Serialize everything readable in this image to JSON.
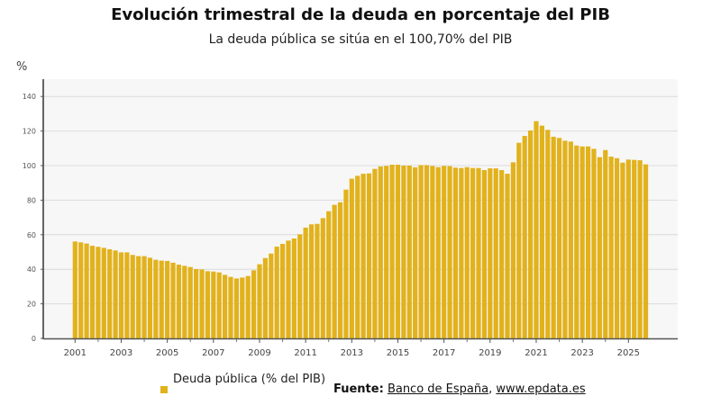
{
  "chart_data": {
    "type": "bar",
    "title": "Evolución trimestral de la deuda en porcentaje del PIB",
    "subtitle": "La deuda pública se sitúa en el 100,70% del PIB",
    "ylabel": "%",
    "xlabel": "",
    "ylim": [
      0,
      150
    ],
    "yticks": [
      0,
      20,
      40,
      60,
      80,
      100,
      120,
      140
    ],
    "xtick_labels": [
      "2001",
      "2003",
      "2005",
      "2007",
      "2009",
      "2011",
      "2013",
      "2015",
      "2017",
      "2019",
      "2021",
      "2023",
      "2025"
    ],
    "grid": true,
    "legend_position": "bottom-left",
    "color": "#e2b21c",
    "series": [
      {
        "name": "Deuda pública (% del PIB)",
        "start": "2001-Q1",
        "frequency": "quarterly",
        "values": [
          56.1,
          55.6,
          54.9,
          53.6,
          53.0,
          52.4,
          51.6,
          50.9,
          49.8,
          49.8,
          48.3,
          47.6,
          47.6,
          46.7,
          45.5,
          45.0,
          44.8,
          43.8,
          42.7,
          42.0,
          41.3,
          40.1,
          39.9,
          38.9,
          38.7,
          38.2,
          36.8,
          35.6,
          34.7,
          35.2,
          36.1,
          39.4,
          42.9,
          46.5,
          49.1,
          53.1,
          54.7,
          56.6,
          57.8,
          60.2,
          64.1,
          66.0,
          66.3,
          69.6,
          73.6,
          77.3,
          78.8,
          86.1,
          92.4,
          94.1,
          95.3,
          95.5,
          98.1,
          99.5,
          99.8,
          100.5,
          100.5,
          100.0,
          100.0,
          99.0,
          100.3,
          100.3,
          99.8,
          99.1,
          99.8,
          99.7,
          98.8,
          98.6,
          99.1,
          98.6,
          98.6,
          97.4,
          98.4,
          98.4,
          97.4,
          95.3,
          101.9,
          113.2,
          117.2,
          120.3,
          125.7,
          123.1,
          120.7,
          116.7,
          116.0,
          114.4,
          113.9,
          111.6,
          111.1,
          111.1,
          109.7,
          104.9,
          109.0,
          105.2,
          104.3,
          101.7,
          103.5,
          103.3,
          103.1,
          100.7
        ]
      }
    ],
    "source_label": "Fuente:",
    "source_links": [
      "Banco de España",
      "www.epdata.es"
    ]
  }
}
